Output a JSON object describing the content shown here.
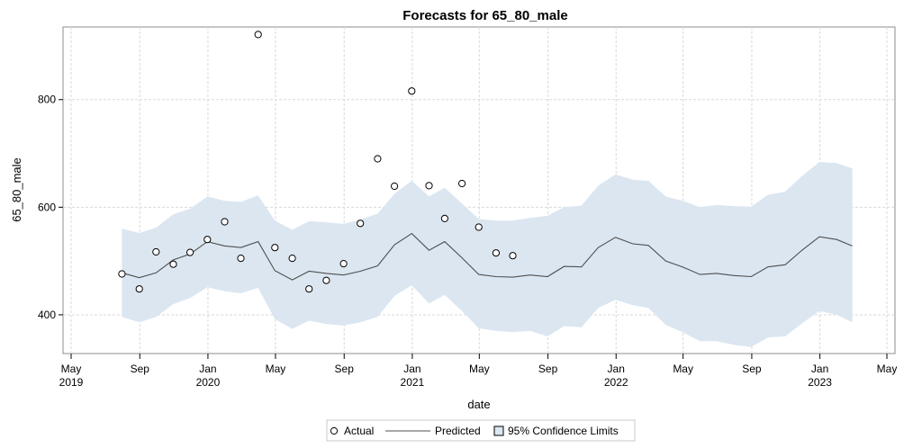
{
  "chart_data": {
    "type": "line",
    "title": "Forecasts for 65_80_male",
    "xlabel": "date",
    "ylabel": "65_80_male",
    "xlim": [
      "2019-05-01",
      "2023-05-01"
    ],
    "ylim": [
      328,
      935
    ],
    "y_ticks": [
      400,
      600,
      800
    ],
    "x_ticks": [
      {
        "date": "2019-05-01",
        "month": "May",
        "year": "2019"
      },
      {
        "date": "2019-09-01",
        "month": "Sep",
        "year": ""
      },
      {
        "date": "2020-01-01",
        "month": "Jan",
        "year": "2020"
      },
      {
        "date": "2020-05-01",
        "month": "May",
        "year": ""
      },
      {
        "date": "2020-09-01",
        "month": "Sep",
        "year": ""
      },
      {
        "date": "2021-01-01",
        "month": "Jan",
        "year": "2021"
      },
      {
        "date": "2021-05-01",
        "month": "May",
        "year": ""
      },
      {
        "date": "2021-09-01",
        "month": "Sep",
        "year": ""
      },
      {
        "date": "2022-01-01",
        "month": "Jan",
        "year": "2022"
      },
      {
        "date": "2022-05-01",
        "month": "May",
        "year": ""
      },
      {
        "date": "2022-09-01",
        "month": "Sep",
        "year": ""
      },
      {
        "date": "2023-01-01",
        "month": "Jan",
        "year": "2023"
      },
      {
        "date": "2023-05-01",
        "month": "May",
        "year": ""
      }
    ],
    "grid": true,
    "legend_position": "bottom",
    "colors": {
      "band": "#dbe6f1",
      "line": "#4f4f4f",
      "marker": "#000000",
      "grid": "#d9d9d9",
      "frame": "#8c8c8c"
    },
    "series": [
      {
        "name": "Actual",
        "style": "marker",
        "points": [
          {
            "x": "2019-07-31",
            "y": 476
          },
          {
            "x": "2019-08-31",
            "y": 448
          },
          {
            "x": "2019-09-30",
            "y": 517
          },
          {
            "x": "2019-10-31",
            "y": 494
          },
          {
            "x": "2019-11-30",
            "y": 516
          },
          {
            "x": "2019-12-31",
            "y": 540
          },
          {
            "x": "2020-01-31",
            "y": 573
          },
          {
            "x": "2020-02-29",
            "y": 505
          },
          {
            "x": "2020-03-31",
            "y": 921
          },
          {
            "x": "2020-04-30",
            "y": 525
          },
          {
            "x": "2020-05-31",
            "y": 505
          },
          {
            "x": "2020-06-30",
            "y": 448
          },
          {
            "x": "2020-07-31",
            "y": 464
          },
          {
            "x": "2020-08-31",
            "y": 495
          },
          {
            "x": "2020-09-30",
            "y": 570
          },
          {
            "x": "2020-10-31",
            "y": 690
          },
          {
            "x": "2020-11-30",
            "y": 639
          },
          {
            "x": "2020-12-31",
            "y": 816
          },
          {
            "x": "2021-01-31",
            "y": 640
          },
          {
            "x": "2021-02-28",
            "y": 579
          },
          {
            "x": "2021-03-31",
            "y": 644
          },
          {
            "x": "2021-04-30",
            "y": 563
          },
          {
            "x": "2021-05-31",
            "y": 515
          },
          {
            "x": "2021-06-30",
            "y": 510
          }
        ]
      },
      {
        "name": "Predicted",
        "style": "line",
        "points": [
          {
            "x": "2019-07-31",
            "y": 478
          },
          {
            "x": "2019-08-31",
            "y": 469
          },
          {
            "x": "2019-09-30",
            "y": 478
          },
          {
            "x": "2019-10-31",
            "y": 502
          },
          {
            "x": "2019-11-30",
            "y": 513
          },
          {
            "x": "2019-12-31",
            "y": 536
          },
          {
            "x": "2020-01-31",
            "y": 528
          },
          {
            "x": "2020-02-29",
            "y": 525
          },
          {
            "x": "2020-03-31",
            "y": 536
          },
          {
            "x": "2020-04-30",
            "y": 482
          },
          {
            "x": "2020-05-31",
            "y": 465
          },
          {
            "x": "2020-06-30",
            "y": 481
          },
          {
            "x": "2020-07-31",
            "y": 477
          },
          {
            "x": "2020-08-31",
            "y": 474
          },
          {
            "x": "2020-09-30",
            "y": 481
          },
          {
            "x": "2020-10-31",
            "y": 491
          },
          {
            "x": "2020-11-30",
            "y": 530
          },
          {
            "x": "2020-12-31",
            "y": 551
          },
          {
            "x": "2021-01-31",
            "y": 520
          },
          {
            "x": "2021-02-28",
            "y": 536
          },
          {
            "x": "2021-03-31",
            "y": 506
          },
          {
            "x": "2021-04-30",
            "y": 475
          },
          {
            "x": "2021-05-31",
            "y": 471
          },
          {
            "x": "2021-06-30",
            "y": 470
          },
          {
            "x": "2021-07-31",
            "y": 474
          },
          {
            "x": "2021-08-31",
            "y": 471
          },
          {
            "x": "2021-09-30",
            "y": 490
          },
          {
            "x": "2021-10-31",
            "y": 489
          },
          {
            "x": "2021-11-30",
            "y": 525
          },
          {
            "x": "2021-12-31",
            "y": 544
          },
          {
            "x": "2022-01-31",
            "y": 532
          },
          {
            "x": "2022-02-28",
            "y": 529
          },
          {
            "x": "2022-03-31",
            "y": 500
          },
          {
            "x": "2022-04-30",
            "y": 489
          },
          {
            "x": "2022-05-31",
            "y": 475
          },
          {
            "x": "2022-06-30",
            "y": 477
          },
          {
            "x": "2022-07-31",
            "y": 473
          },
          {
            "x": "2022-08-31",
            "y": 471
          },
          {
            "x": "2022-09-30",
            "y": 489
          },
          {
            "x": "2022-10-31",
            "y": 493
          },
          {
            "x": "2022-11-30",
            "y": 520
          },
          {
            "x": "2022-12-31",
            "y": 545
          },
          {
            "x": "2023-01-31",
            "y": 540
          },
          {
            "x": "2023-02-28",
            "y": 528
          }
        ]
      },
      {
        "name": "95% Confidence Limits",
        "style": "band",
        "points": [
          {
            "x": "2019-07-31",
            "upper": 560,
            "lower": 396
          },
          {
            "x": "2019-08-31",
            "upper": 552,
            "lower": 386
          },
          {
            "x": "2019-09-30",
            "upper": 562,
            "lower": 396
          },
          {
            "x": "2019-10-31",
            "upper": 587,
            "lower": 420
          },
          {
            "x": "2019-11-30",
            "upper": 597,
            "lower": 431
          },
          {
            "x": "2019-12-31",
            "upper": 620,
            "lower": 451
          },
          {
            "x": "2020-01-31",
            "upper": 612,
            "lower": 444
          },
          {
            "x": "2020-02-29",
            "upper": 610,
            "lower": 440
          },
          {
            "x": "2020-03-31",
            "upper": 622,
            "lower": 450
          },
          {
            "x": "2020-04-30",
            "upper": 575,
            "lower": 392
          },
          {
            "x": "2020-05-31",
            "upper": 558,
            "lower": 374
          },
          {
            "x": "2020-06-30",
            "upper": 574,
            "lower": 389
          },
          {
            "x": "2020-07-31",
            "upper": 572,
            "lower": 383
          },
          {
            "x": "2020-08-31",
            "upper": 569,
            "lower": 380
          },
          {
            "x": "2020-09-30",
            "upper": 577,
            "lower": 386
          },
          {
            "x": "2020-10-31",
            "upper": 588,
            "lower": 396
          },
          {
            "x": "2020-11-30",
            "upper": 625,
            "lower": 435
          },
          {
            "x": "2020-12-31",
            "upper": 649,
            "lower": 455
          },
          {
            "x": "2021-01-31",
            "upper": 620,
            "lower": 421
          },
          {
            "x": "2021-02-28",
            "upper": 636,
            "lower": 437
          },
          {
            "x": "2021-03-31",
            "upper": 607,
            "lower": 407
          },
          {
            "x": "2021-04-30",
            "upper": 578,
            "lower": 375
          },
          {
            "x": "2021-05-31",
            "upper": 575,
            "lower": 370
          },
          {
            "x": "2021-06-30",
            "upper": 575,
            "lower": 368
          },
          {
            "x": "2021-07-31",
            "upper": 580,
            "lower": 370
          },
          {
            "x": "2021-08-31",
            "upper": 584,
            "lower": 360
          },
          {
            "x": "2021-09-30",
            "upper": 600,
            "lower": 379
          },
          {
            "x": "2021-10-31",
            "upper": 603,
            "lower": 377
          },
          {
            "x": "2021-11-30",
            "upper": 640,
            "lower": 413
          },
          {
            "x": "2021-12-31",
            "upper": 661,
            "lower": 428
          },
          {
            "x": "2022-01-31",
            "upper": 651,
            "lower": 418
          },
          {
            "x": "2022-02-28",
            "upper": 649,
            "lower": 413
          },
          {
            "x": "2022-03-31",
            "upper": 620,
            "lower": 381
          },
          {
            "x": "2022-04-30",
            "upper": 612,
            "lower": 368
          },
          {
            "x": "2022-05-31",
            "upper": 600,
            "lower": 351
          },
          {
            "x": "2022-06-30",
            "upper": 604,
            "lower": 351
          },
          {
            "x": "2022-07-31",
            "upper": 602,
            "lower": 344
          },
          {
            "x": "2022-08-31",
            "upper": 601,
            "lower": 340
          },
          {
            "x": "2022-09-30",
            "upper": 623,
            "lower": 358
          },
          {
            "x": "2022-10-31",
            "upper": 629,
            "lower": 360
          },
          {
            "x": "2022-11-30",
            "upper": 658,
            "lower": 384
          },
          {
            "x": "2022-12-31",
            "upper": 684,
            "lower": 407
          },
          {
            "x": "2023-01-31",
            "upper": 682,
            "lower": 400
          },
          {
            "x": "2023-02-28",
            "upper": 672,
            "lower": 386
          }
        ]
      }
    ]
  }
}
